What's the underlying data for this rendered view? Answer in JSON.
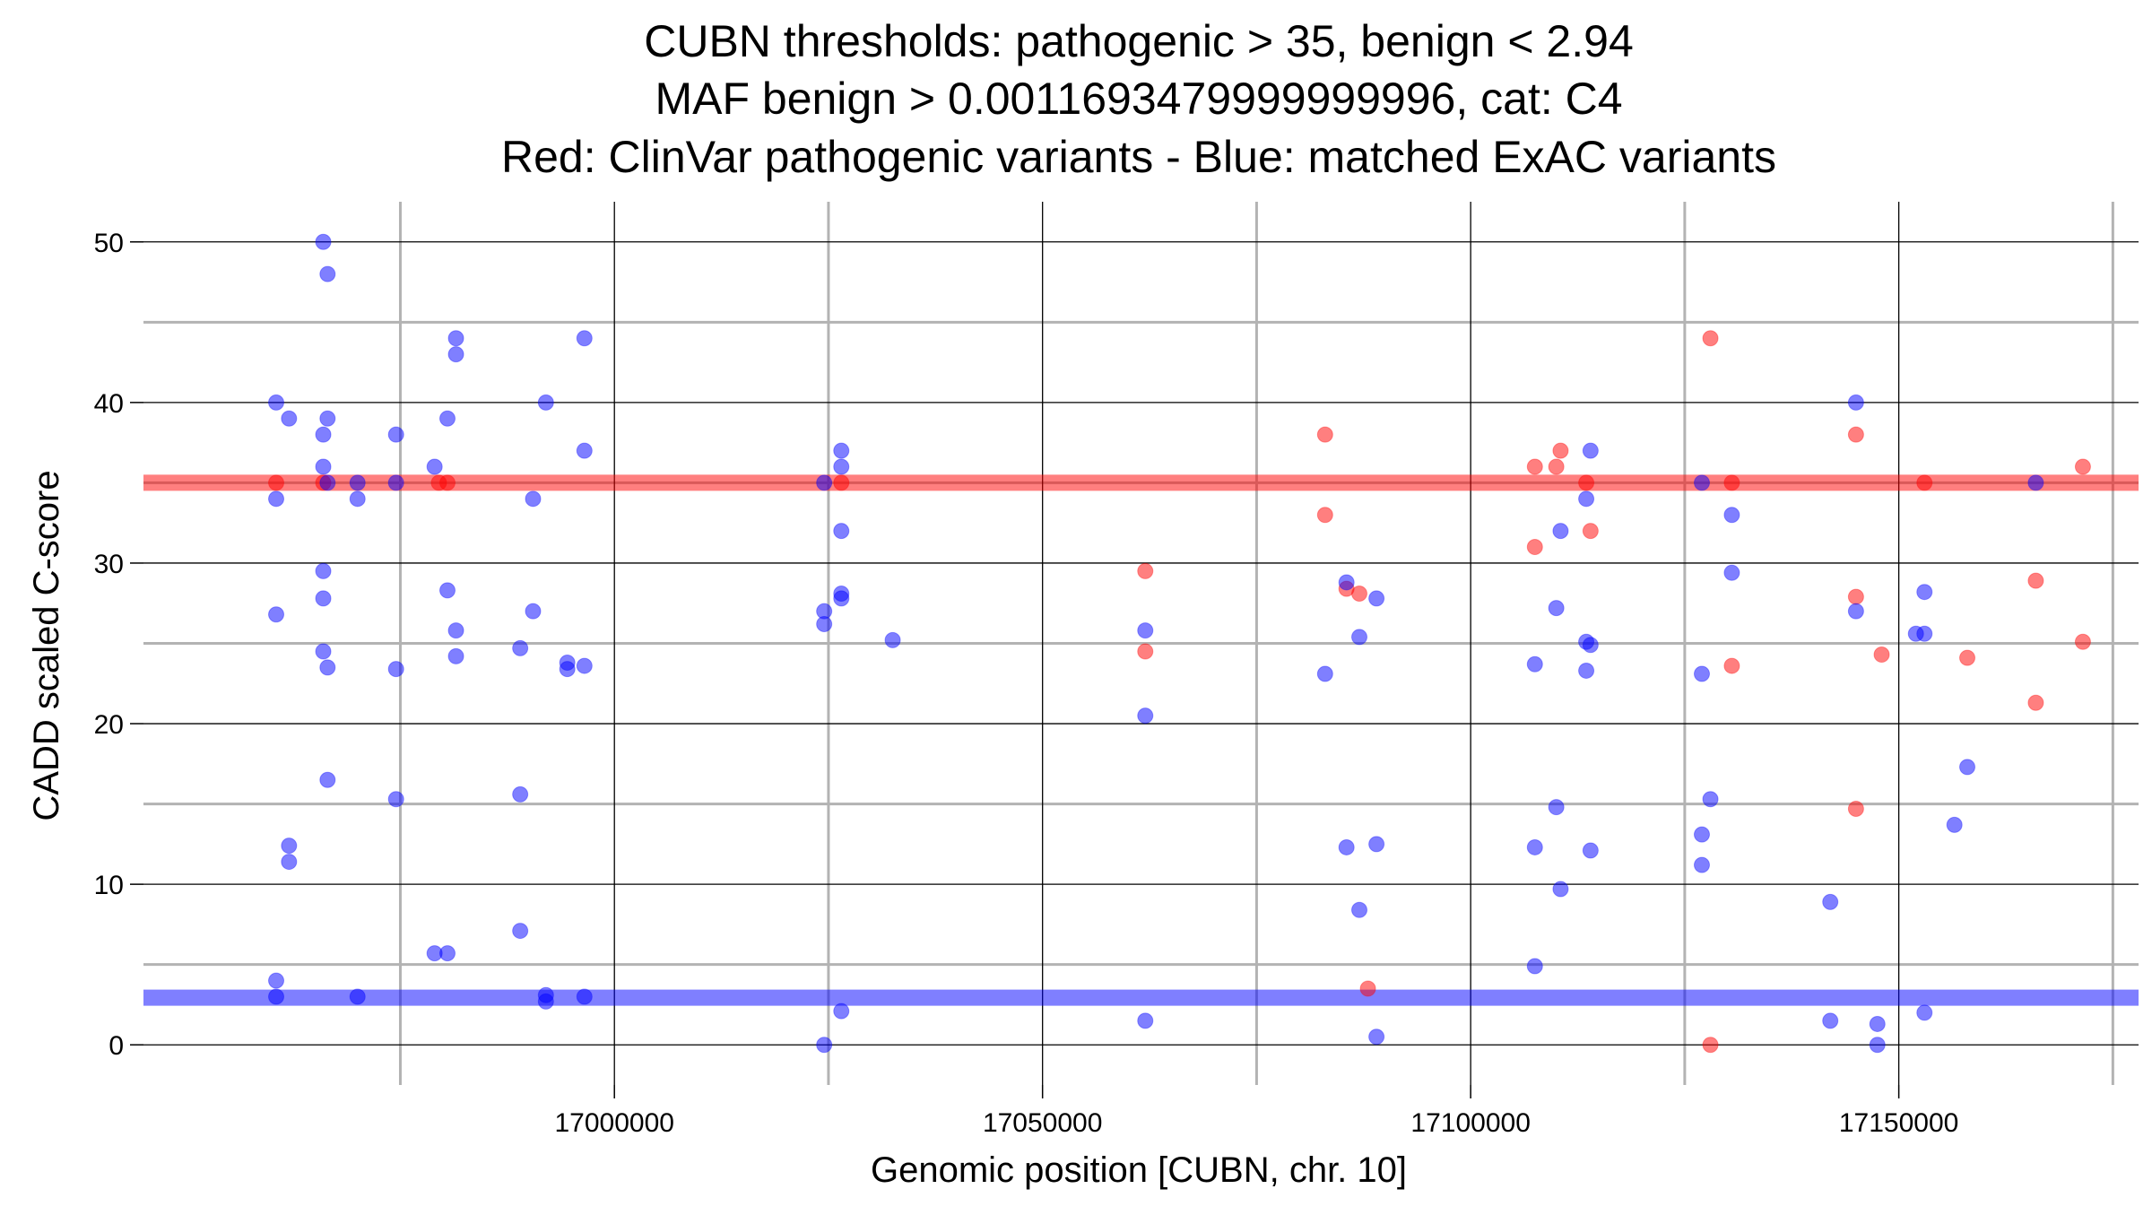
{
  "chart_data": {
    "type": "scatter",
    "title": [
      "CUBN thresholds: pathogenic > 35, benign < 2.94",
      "MAF benign > 0.0011693479999999996, cat: C4",
      "Red: ClinVar pathogenic variants - Blue: matched ExAC variants"
    ],
    "xlabel": "Genomic position [CUBN, chr. 10]",
    "ylabel": "CADD scaled C-score",
    "xlim": [
      16945000,
      17178000
    ],
    "ylim": [
      -2.5,
      52.5
    ],
    "x_ticks": [
      17000000,
      17050000,
      17100000,
      17150000
    ],
    "x_tick_labels": [
      "17000000",
      "17050000",
      "17100000",
      "17150000"
    ],
    "x_minor_gridlines": [
      16975000,
      17025000,
      17075000,
      17125000,
      17175000
    ],
    "y_ticks": [
      0,
      10,
      20,
      30,
      40,
      50
    ],
    "y_tick_labels": [
      "0",
      "10",
      "20",
      "30",
      "40",
      "50"
    ],
    "y_minor_gridlines": [
      5,
      15,
      25,
      35,
      45
    ],
    "grid": true,
    "thresholds": {
      "pathogenic": 35,
      "benign": 2.94
    },
    "colors": {
      "pathogenic": "#ff0000",
      "benign": "#0000ff",
      "major_grid": "#000000",
      "minor_grid": "#b3b3b3"
    },
    "series": [
      {
        "color": "#ff0000",
        "points": [
          [
            16960500,
            35
          ],
          [
            16966000,
            35
          ],
          [
            16979500,
            35
          ],
          [
            16980500,
            35
          ],
          [
            17026500,
            35
          ],
          [
            17062000,
            29.5
          ],
          [
            17062000,
            24.5
          ],
          [
            17083000,
            38
          ],
          [
            17083000,
            33
          ],
          [
            17085500,
            28.4
          ],
          [
            17087000,
            28.1
          ],
          [
            17088000,
            3.5
          ],
          [
            17107500,
            36
          ],
          [
            17107500,
            31
          ],
          [
            17110000,
            36
          ],
          [
            17110500,
            37
          ],
          [
            17113500,
            35
          ],
          [
            17114000,
            32
          ],
          [
            17128000,
            44
          ],
          [
            17128000,
            0
          ],
          [
            17130500,
            35
          ],
          [
            17130500,
            23.6
          ],
          [
            17145000,
            38
          ],
          [
            17145000,
            27.9
          ],
          [
            17145000,
            14.7
          ],
          [
            17148000,
            24.3
          ],
          [
            17153000,
            35
          ],
          [
            17158000,
            24.1
          ],
          [
            17166000,
            28.9
          ],
          [
            17166000,
            21.3
          ],
          [
            17171500,
            25.1
          ],
          [
            17171500,
            36
          ]
        ]
      },
      {
        "color": "#0000ff",
        "points": [
          [
            16960500,
            40
          ],
          [
            16960500,
            34
          ],
          [
            16960500,
            26.8
          ],
          [
            16960500,
            4
          ],
          [
            16960500,
            3
          ],
          [
            16962000,
            39
          ],
          [
            16962000,
            12.4
          ],
          [
            16962000,
            11.4
          ],
          [
            16966000,
            50
          ],
          [
            16966500,
            48
          ],
          [
            16966000,
            38
          ],
          [
            16966500,
            39
          ],
          [
            16966000,
            36
          ],
          [
            16966500,
            35
          ],
          [
            16966000,
            29.5
          ],
          [
            16966000,
            27.8
          ],
          [
            16966000,
            24.5
          ],
          [
            16966500,
            23.5
          ],
          [
            16966500,
            16.5
          ],
          [
            16970000,
            34
          ],
          [
            16970000,
            35
          ],
          [
            16970000,
            3
          ],
          [
            16974500,
            38
          ],
          [
            16974500,
            35
          ],
          [
            16974500,
            23.4
          ],
          [
            16974500,
            15.3
          ],
          [
            16979000,
            36
          ],
          [
            16979000,
            5.7
          ],
          [
            16980500,
            39
          ],
          [
            16980500,
            28.3
          ],
          [
            16980500,
            5.7
          ],
          [
            16981500,
            44
          ],
          [
            16981500,
            43
          ],
          [
            16981500,
            25.8
          ],
          [
            16981500,
            24.2
          ],
          [
            16989000,
            24.7
          ],
          [
            16989000,
            15.6
          ],
          [
            16989000,
            7.1
          ],
          [
            16990500,
            34
          ],
          [
            16990500,
            27
          ],
          [
            16992000,
            40
          ],
          [
            16992000,
            3.1
          ],
          [
            16992000,
            2.7
          ],
          [
            16994500,
            23.8
          ],
          [
            16994500,
            23.4
          ],
          [
            16996500,
            44
          ],
          [
            16996500,
            37
          ],
          [
            16996500,
            23.6
          ],
          [
            16996500,
            3
          ],
          [
            17024500,
            35
          ],
          [
            17024500,
            27
          ],
          [
            17024500,
            26.2
          ],
          [
            17024500,
            0
          ],
          [
            17026500,
            37
          ],
          [
            17026500,
            36
          ],
          [
            17026500,
            32
          ],
          [
            17026500,
            28.1
          ],
          [
            17026500,
            27.8
          ],
          [
            17026500,
            2.1
          ],
          [
            17032500,
            25.2
          ],
          [
            17062000,
            25.8
          ],
          [
            17062000,
            20.5
          ],
          [
            17062000,
            1.5
          ],
          [
            17083000,
            23.1
          ],
          [
            17085500,
            28.8
          ],
          [
            17085500,
            12.3
          ],
          [
            17087000,
            25.4
          ],
          [
            17087000,
            8.4
          ],
          [
            17089000,
            27.8
          ],
          [
            17089000,
            12.5
          ],
          [
            17089000,
            0.5
          ],
          [
            17107500,
            23.7
          ],
          [
            17107500,
            12.3
          ],
          [
            17107500,
            4.9
          ],
          [
            17110000,
            27.2
          ],
          [
            17110000,
            14.8
          ],
          [
            17110500,
            32
          ],
          [
            17110500,
            9.7
          ],
          [
            17113500,
            34
          ],
          [
            17113500,
            25.1
          ],
          [
            17113500,
            23.3
          ],
          [
            17114000,
            37
          ],
          [
            17114000,
            24.9
          ],
          [
            17114000,
            12.1
          ],
          [
            17127000,
            35
          ],
          [
            17127000,
            23.1
          ],
          [
            17127000,
            13.1
          ],
          [
            17127000,
            11.2
          ],
          [
            17128000,
            15.3
          ],
          [
            17130500,
            33
          ],
          [
            17130500,
            29.4
          ],
          [
            17142000,
            8.9
          ],
          [
            17142000,
            1.5
          ],
          [
            17145000,
            40
          ],
          [
            17145000,
            27
          ],
          [
            17147500,
            1.3
          ],
          [
            17147500,
            0
          ],
          [
            17152000,
            25.6
          ],
          [
            17153000,
            28.2
          ],
          [
            17153000,
            25.6
          ],
          [
            17153000,
            2
          ],
          [
            17156500,
            13.7
          ],
          [
            17158000,
            17.3
          ],
          [
            17166000,
            35
          ]
        ]
      }
    ]
  }
}
